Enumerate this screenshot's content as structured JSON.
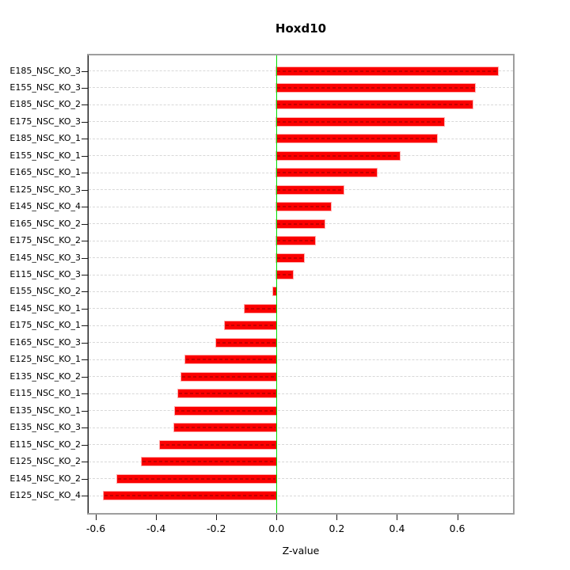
{
  "chart_data": {
    "type": "bar",
    "orientation": "horizontal",
    "title": "Hoxd10",
    "xlabel": "Z-value",
    "categories": [
      "E185_NSC_KO_3",
      "E155_NSC_KO_3",
      "E185_NSC_KO_2",
      "E175_NSC_KO_3",
      "E185_NSC_KO_1",
      "E155_NSC_KO_1",
      "E165_NSC_KO_1",
      "E125_NSC_KO_3",
      "E145_NSC_KO_4",
      "E165_NSC_KO_2",
      "E175_NSC_KO_2",
      "E145_NSC_KO_3",
      "E115_NSC_KO_3",
      "E155_NSC_KO_2",
      "E145_NSC_KO_1",
      "E175_NSC_KO_1",
      "E165_NSC_KO_3",
      "E125_NSC_KO_1",
      "E135_NSC_KO_2",
      "E115_NSC_KO_1",
      "E135_NSC_KO_1",
      "E135_NSC_KO_3",
      "E115_NSC_KO_2",
      "E125_NSC_KO_2",
      "E145_NSC_KO_2",
      "E125_NSC_KO_4"
    ],
    "values": [
      0.735,
      0.66,
      0.652,
      0.556,
      0.532,
      0.41,
      0.334,
      0.222,
      0.181,
      0.16,
      0.128,
      0.09,
      0.055,
      -0.012,
      -0.105,
      -0.172,
      -0.2,
      -0.302,
      -0.316,
      -0.328,
      -0.336,
      -0.339,
      -0.388,
      -0.449,
      -0.528,
      -0.574
    ],
    "xlim": [
      -0.6238,
      0.7851
    ],
    "xticks": [
      -0.6,
      -0.4,
      -0.2,
      0.0,
      0.2,
      0.4,
      0.6
    ],
    "xtick_labels": [
      "-0.6",
      "-0.4",
      "-0.2",
      "0.0",
      "0.2",
      "0.4",
      "0.6"
    ],
    "zero_reference_line": 0.0,
    "grid": "horizontal-dashed",
    "legend": "none",
    "colors": {
      "bar": "#fb0000",
      "bar_edge": "#ffa0a0",
      "zero_line": "#00dd00",
      "grid_line": "#d8d8d8",
      "box_border": "#9e9e9e",
      "axis": "#1a1a1a",
      "background": "#ffffff"
    }
  }
}
